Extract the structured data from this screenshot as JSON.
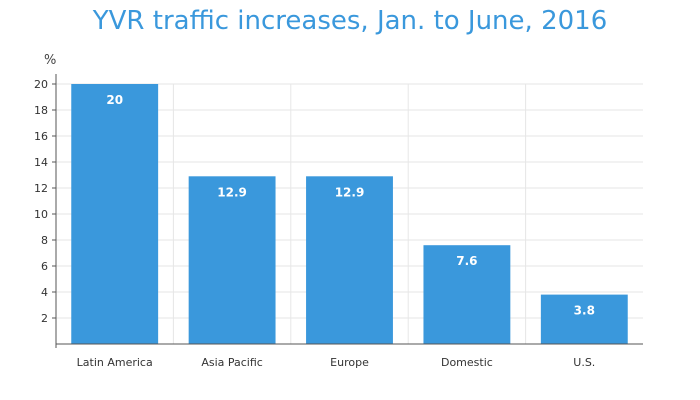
{
  "colors": {
    "bar": "#3a98dc",
    "title": "#3a98dc",
    "grid": "#e6e6e6",
    "axis": "#555555"
  },
  "chart_data": {
    "type": "bar",
    "title": "YVR traffic increases, Jan. to June, 2016",
    "ylabel": "%",
    "xlabel": "",
    "categories": [
      "Latin America",
      "Asia Pacific",
      "Europe",
      "Domestic",
      "U.S."
    ],
    "values": [
      20,
      12.9,
      12.9,
      7.6,
      3.8
    ],
    "data_labels": [
      "20",
      "12.9",
      "12.9",
      "7.6",
      "3.8"
    ],
    "ylim": [
      0,
      20
    ],
    "yticks": [
      2,
      4,
      6,
      8,
      10,
      12,
      14,
      16,
      18,
      20
    ],
    "grid": true,
    "legend": "none"
  }
}
